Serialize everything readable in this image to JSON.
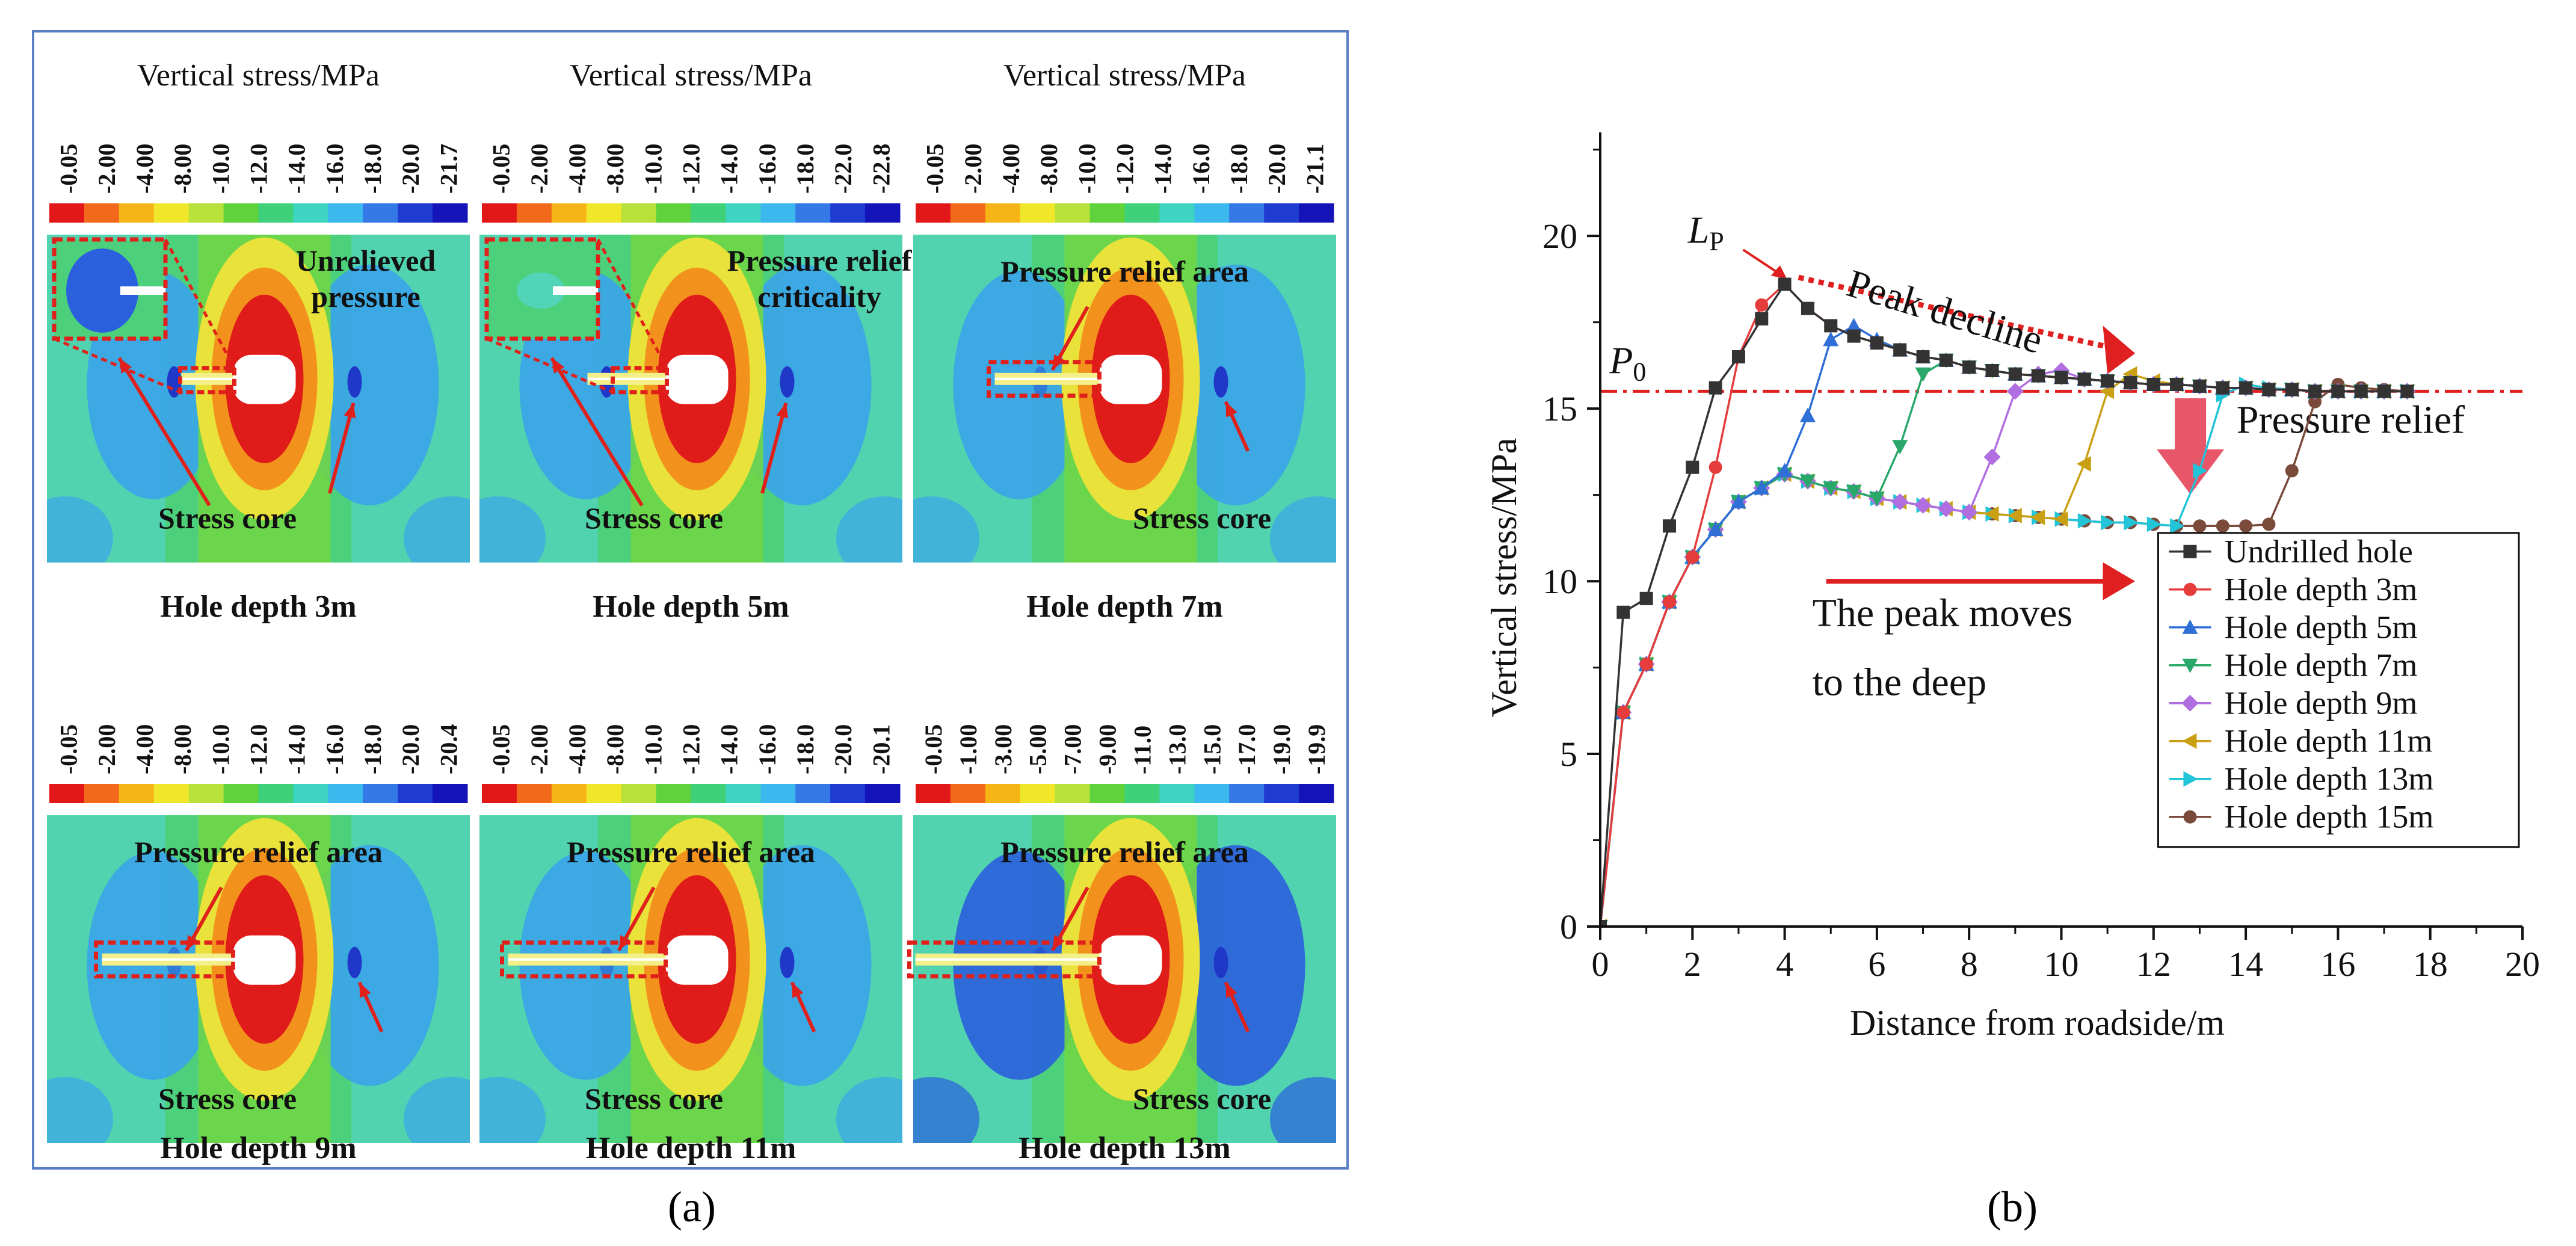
{
  "figure": {
    "panel_a_label": "(a)",
    "panel_b_label": "(b)"
  },
  "panel_a": {
    "cells": [
      {
        "title": "Vertical stress/MPa",
        "ticks": [
          "-0.05",
          "-2.00",
          "-4.00",
          "-8.00",
          "-10.0",
          "-12.0",
          "-14.0",
          "-16.0",
          "-18.0",
          "-20.0",
          "-21.7"
        ],
        "caption": "Hole depth 3m",
        "labels": [
          "Unrelieved pressure",
          "Stress core"
        ],
        "inset": true,
        "hole_depth_m": 3
      },
      {
        "title": "Vertical stress/MPa",
        "ticks": [
          "-0.05",
          "-2.00",
          "-4.00",
          "-8.00",
          "-10.0",
          "-12.0",
          "-14.0",
          "-16.0",
          "-18.0",
          "-22.0",
          "-22.8"
        ],
        "caption": "Hole depth 5m",
        "labels": [
          "Pressure relief criticality",
          "Stress core"
        ],
        "inset": true,
        "hole_depth_m": 5
      },
      {
        "title": "Vertical stress/MPa",
        "ticks": [
          "-0.05",
          "-2.00",
          "-4.00",
          "-8.00",
          "-10.0",
          "-12.0",
          "-14.0",
          "-16.0",
          "-18.0",
          "-20.0",
          "-21.1"
        ],
        "caption": "Hole depth 7m",
        "labels": [
          "Pressure relief area",
          "Stress core"
        ],
        "inset": false,
        "hole_depth_m": 7
      },
      {
        "title": "",
        "ticks": [
          "-0.05",
          "-2.00",
          "-4.00",
          "-8.00",
          "-10.0",
          "-12.0",
          "-14.0",
          "-16.0",
          "-18.0",
          "-20.0",
          "-20.4"
        ],
        "caption": "Hole depth 9m",
        "labels": [
          "Pressure relief area",
          "Stress core"
        ],
        "inset": false,
        "hole_depth_m": 9
      },
      {
        "title": "",
        "ticks": [
          "-0.05",
          "-2.00",
          "-4.00",
          "-8.00",
          "-10.0",
          "-12.0",
          "-14.0",
          "-16.0",
          "-18.0",
          "-20.0",
          "-20.1"
        ],
        "caption": "Hole depth 11m",
        "labels": [
          "Pressure relief area",
          "Stress core"
        ],
        "inset": false,
        "hole_depth_m": 11
      },
      {
        "title": "",
        "ticks": [
          "-0.05",
          "-1.00",
          "-3.00",
          "-5.00",
          "-7.00",
          "-9.00",
          "-11.0",
          "-13.0",
          "-15.0",
          "-17.0",
          "-19.0",
          "-19.9"
        ],
        "caption": "Hole depth 13m",
        "labels": [
          "Pressure relief area",
          "Stress core"
        ],
        "inset": false,
        "hole_depth_m": 13
      }
    ],
    "colorbar_colors": [
      "#e21818",
      "#f2691b",
      "#f5b516",
      "#f0e62a",
      "#b8e13a",
      "#5fd23c",
      "#3fd07a",
      "#3ed4c2",
      "#3bb9ee",
      "#3479e6",
      "#1f3cd0",
      "#1414b8"
    ],
    "field_colors": {
      "background": "#4cd07c",
      "side_light": "#52d4b8",
      "lobe_blue": "#3aa4ea",
      "lobe_dark": "#2a5fde",
      "core": "#2038c8",
      "halo_green": "#6fd646",
      "halo_yellow": "#e8e23a",
      "halo_orange": "#f2921c",
      "halo_red": "#e01c1a",
      "hole_tip": "#f3f08a"
    },
    "annotation_color": "#e0201a"
  },
  "chart_data": {
    "type": "line",
    "title": "",
    "xlabel": "Distance from roadside/m",
    "ylabel": "Vertical stress/MPa",
    "xlim": [
      0,
      20
    ],
    "ylim": [
      0,
      23
    ],
    "xticks": [
      0,
      2,
      4,
      6,
      8,
      10,
      12,
      14,
      16,
      18,
      20
    ],
    "yticks": [
      0,
      5,
      10,
      15,
      20
    ],
    "legend_position": "bottom-right",
    "reference_line": {
      "label": "P",
      "subscript": "0",
      "y": 15.5,
      "color": "#e02020"
    },
    "peak_label": {
      "label": "L",
      "subscript": "P",
      "x": 4.1,
      "y": 18.6
    },
    "annotations": [
      {
        "text": "Peak decline",
        "x": 5.3,
        "y": 18.3
      },
      {
        "text": "Pressure relief",
        "x": 13.8,
        "y": 14.3
      },
      {
        "text": "The peak moves",
        "x": 4.6,
        "y": 8.7
      },
      {
        "text": "to the deep",
        "x": 4.6,
        "y": 6.7
      }
    ],
    "series": [
      {
        "name": "Undrilled hole",
        "color": "#333333",
        "marker": "square",
        "x": [
          0,
          0.5,
          1,
          1.5,
          2,
          2.5,
          3,
          3.5,
          4,
          4.5,
          5,
          5.5,
          6,
          6.5,
          7,
          7.5,
          8,
          8.5,
          9,
          9.5,
          10,
          10.5,
          11,
          11.5,
          12,
          12.5,
          13,
          13.5,
          14,
          14.5,
          15,
          15.5,
          16,
          16.5,
          17,
          17.5
        ],
        "y": [
          0,
          9.1,
          9.5,
          11.6,
          13.3,
          15.6,
          16.5,
          17.6,
          18.6,
          17.9,
          17.4,
          17.1,
          16.9,
          16.7,
          16.5,
          16.4,
          16.2,
          16.1,
          16.0,
          15.95,
          15.9,
          15.85,
          15.8,
          15.75,
          15.7,
          15.7,
          15.65,
          15.6,
          15.6,
          15.55,
          15.55,
          15.5,
          15.5,
          15.5,
          15.5,
          15.5
        ]
      },
      {
        "name": "Hole depth 3m",
        "color": "#e63c3c",
        "marker": "circle",
        "x": [
          0,
          0.5,
          1,
          1.5,
          2,
          2.5,
          3,
          3.5,
          4,
          4.5,
          5,
          5.5,
          6,
          6.5,
          7,
          7.5,
          8,
          8.5,
          9,
          9.5,
          10,
          10.5,
          11,
          11.5,
          12,
          12.5,
          13,
          13.5,
          14,
          14.5,
          15,
          15.5,
          16,
          16.5,
          17,
          17.5
        ],
        "y": [
          0,
          6.2,
          7.6,
          9.4,
          10.7,
          13.3,
          16.5,
          18.0,
          18.6,
          17.9,
          17.4,
          17.1,
          16.9,
          16.7,
          16.5,
          16.4,
          16.2,
          16.1,
          16.0,
          15.95,
          15.9,
          15.85,
          15.8,
          15.75,
          15.7,
          15.7,
          15.65,
          15.6,
          15.6,
          15.55,
          15.55,
          15.5,
          15.5,
          15.5,
          15.5,
          15.5
        ]
      },
      {
        "name": "Hole depth 5m",
        "color": "#2f6fd6",
        "marker": "triangle-up",
        "x": [
          0,
          0.5,
          1,
          1.5,
          2,
          2.5,
          3,
          3.5,
          4,
          4.5,
          5,
          5.5,
          6,
          6.5,
          7,
          7.5,
          8,
          8.5,
          9,
          9.5,
          10,
          10.5,
          11,
          11.5,
          12,
          12.5,
          13,
          13.5,
          14,
          14.5,
          15,
          15.5,
          16,
          16.5,
          17,
          17.5
        ],
        "y": [
          0,
          6.2,
          7.6,
          9.4,
          10.7,
          11.5,
          12.3,
          12.7,
          13.2,
          14.8,
          17.0,
          17.4,
          17.0,
          16.7,
          16.5,
          16.4,
          16.2,
          16.1,
          16.0,
          15.95,
          15.9,
          15.85,
          15.8,
          15.75,
          15.7,
          15.7,
          15.65,
          15.6,
          15.6,
          15.55,
          15.55,
          15.5,
          15.5,
          15.5,
          15.5,
          15.5
        ]
      },
      {
        "name": "Hole depth 7m",
        "color": "#2aa86a",
        "marker": "triangle-down",
        "x": [
          0,
          0.5,
          1,
          1.5,
          2,
          2.5,
          3,
          3.5,
          4,
          4.5,
          5,
          5.5,
          6,
          6.5,
          7,
          7.5,
          8,
          8.5,
          9,
          9.5,
          10,
          10.5,
          11,
          11.5,
          12,
          12.5,
          13,
          13.5,
          14,
          14.5,
          15,
          15.5,
          16,
          16.5,
          17,
          17.5
        ],
        "y": [
          0,
          6.2,
          7.6,
          9.4,
          10.7,
          11.5,
          12.3,
          12.7,
          13.1,
          12.9,
          12.7,
          12.6,
          12.4,
          13.9,
          16.0,
          16.4,
          16.2,
          16.1,
          16.0,
          15.95,
          15.9,
          15.85,
          15.8,
          15.75,
          15.7,
          15.7,
          15.65,
          15.6,
          15.6,
          15.55,
          15.55,
          15.5,
          15.5,
          15.5,
          15.5,
          15.5
        ]
      },
      {
        "name": "Hole depth 9m",
        "color": "#b06ee0",
        "marker": "diamond",
        "x": [
          0,
          0.5,
          1,
          1.5,
          2,
          2.5,
          3,
          3.5,
          4,
          4.5,
          5,
          5.5,
          6,
          6.5,
          7,
          7.5,
          8,
          8.5,
          9,
          9.5,
          10,
          10.5,
          11,
          11.5,
          12,
          12.5,
          13,
          13.5,
          14,
          14.5,
          15,
          15.5,
          16,
          16.5,
          17,
          17.5
        ],
        "y": [
          0,
          6.2,
          7.6,
          9.4,
          10.7,
          11.5,
          12.3,
          12.7,
          13.1,
          12.9,
          12.7,
          12.6,
          12.4,
          12.3,
          12.2,
          12.1,
          12.0,
          13.6,
          15.5,
          16.0,
          16.1,
          15.85,
          15.8,
          15.75,
          15.7,
          15.7,
          15.65,
          15.6,
          15.6,
          15.55,
          15.55,
          15.5,
          15.5,
          15.5,
          15.5,
          15.5
        ]
      },
      {
        "name": "Hole depth 11m",
        "color": "#c9a014",
        "marker": "triangle-left",
        "x": [
          0,
          0.5,
          1,
          1.5,
          2,
          2.5,
          3,
          3.5,
          4,
          4.5,
          5,
          5.5,
          6,
          6.5,
          7,
          7.5,
          8,
          8.5,
          9,
          9.5,
          10,
          10.5,
          11,
          11.5,
          12,
          12.5,
          13,
          13.5,
          14,
          14.5,
          15,
          15.5,
          16,
          16.5,
          17,
          17.5
        ],
        "y": [
          0,
          6.2,
          7.6,
          9.4,
          10.7,
          11.5,
          12.3,
          12.7,
          13.1,
          12.9,
          12.7,
          12.6,
          12.4,
          12.3,
          12.2,
          12.1,
          12.0,
          11.95,
          11.9,
          11.85,
          11.8,
          13.4,
          15.5,
          16.0,
          15.8,
          15.7,
          15.65,
          15.6,
          15.6,
          15.55,
          15.55,
          15.5,
          15.5,
          15.5,
          15.5,
          15.5
        ]
      },
      {
        "name": "Hole depth 13m",
        "color": "#22c4d8",
        "marker": "triangle-right",
        "x": [
          0,
          0.5,
          1,
          1.5,
          2,
          2.5,
          3,
          3.5,
          4,
          4.5,
          5,
          5.5,
          6,
          6.5,
          7,
          7.5,
          8,
          8.5,
          9,
          9.5,
          10,
          10.5,
          11,
          11.5,
          12,
          12.5,
          13,
          13.5,
          14,
          14.5,
          15,
          15.5,
          16,
          16.5,
          17,
          17.5
        ],
        "y": [
          0,
          6.2,
          7.6,
          9.4,
          10.7,
          11.5,
          12.3,
          12.7,
          13.1,
          12.9,
          12.7,
          12.6,
          12.4,
          12.3,
          12.2,
          12.1,
          12.0,
          11.95,
          11.9,
          11.85,
          11.8,
          11.75,
          11.7,
          11.7,
          11.65,
          11.6,
          13.2,
          15.4,
          15.7,
          15.6,
          15.55,
          15.5,
          15.5,
          15.5,
          15.5,
          15.5
        ]
      },
      {
        "name": "Hole depth 15m",
        "color": "#7a4a3a",
        "marker": "circle",
        "x": [
          0,
          0.5,
          1,
          1.5,
          2,
          2.5,
          3,
          3.5,
          4,
          4.5,
          5,
          5.5,
          6,
          6.5,
          7,
          7.5,
          8,
          8.5,
          9,
          9.5,
          10,
          10.5,
          11,
          11.5,
          12,
          12.5,
          13,
          13.5,
          14,
          14.5,
          15,
          15.5,
          16,
          16.5,
          17,
          17.5
        ],
        "y": [
          0,
          6.2,
          7.6,
          9.4,
          10.7,
          11.5,
          12.3,
          12.7,
          13.1,
          12.9,
          12.7,
          12.6,
          12.4,
          12.3,
          12.2,
          12.1,
          12.0,
          11.95,
          11.9,
          11.85,
          11.8,
          11.75,
          11.7,
          11.7,
          11.65,
          11.6,
          11.6,
          11.6,
          11.6,
          11.65,
          13.2,
          15.2,
          15.7,
          15.6,
          15.55,
          15.5
        ]
      }
    ]
  }
}
